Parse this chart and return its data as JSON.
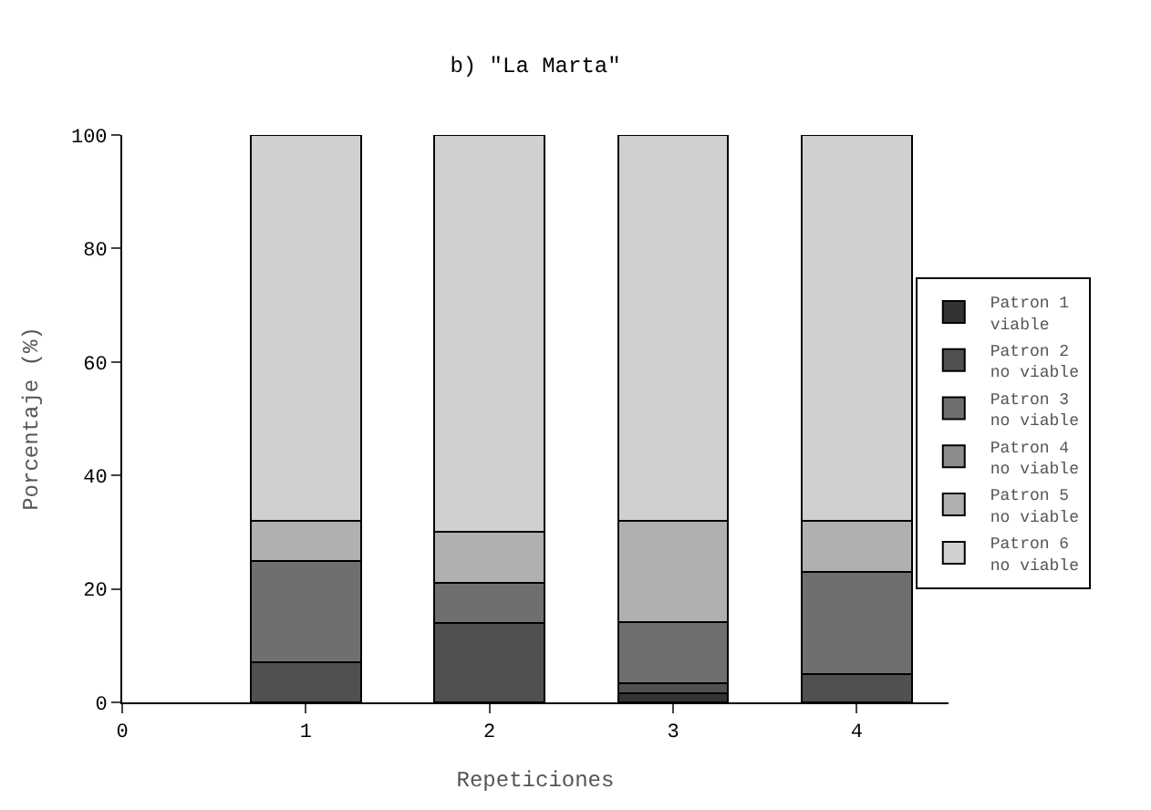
{
  "chart_data": {
    "type": "bar",
    "stacked": true,
    "title": "b) \"La Marta\"",
    "xlabel": "Repeticiones",
    "ylabel": "Porcentaje (%)",
    "x": [
      1,
      2,
      3,
      4
    ],
    "xlim": [
      0,
      4.5
    ],
    "xticks": [
      0,
      1,
      2,
      3,
      4
    ],
    "ylim": [
      0,
      100
    ],
    "yticks": [
      0,
      20,
      40,
      60,
      80,
      100
    ],
    "legend": "right",
    "series": [
      {
        "name": "Patron 1\nviable",
        "color": "#333333",
        "values": [
          0,
          0,
          1.6,
          0
        ]
      },
      {
        "name": "Patron 2\nno viable",
        "color": "#505050",
        "values": [
          7,
          14,
          1.7,
          5
        ]
      },
      {
        "name": "Patron 3\nno viable",
        "color": "#6f6f6f",
        "values": [
          18,
          7,
          10.9,
          18
        ]
      },
      {
        "name": "Patron 4\nno viable",
        "color": "#8c8c8c",
        "values": [
          0,
          0,
          0,
          0
        ]
      },
      {
        "name": "Patron 5\nno viable",
        "color": "#b0b0b0",
        "values": [
          7,
          9,
          17.8,
          9
        ]
      },
      {
        "name": "Patron 6\nno viable",
        "color": "#d0d0d0",
        "values": [
          68,
          70,
          68,
          68
        ]
      }
    ]
  }
}
